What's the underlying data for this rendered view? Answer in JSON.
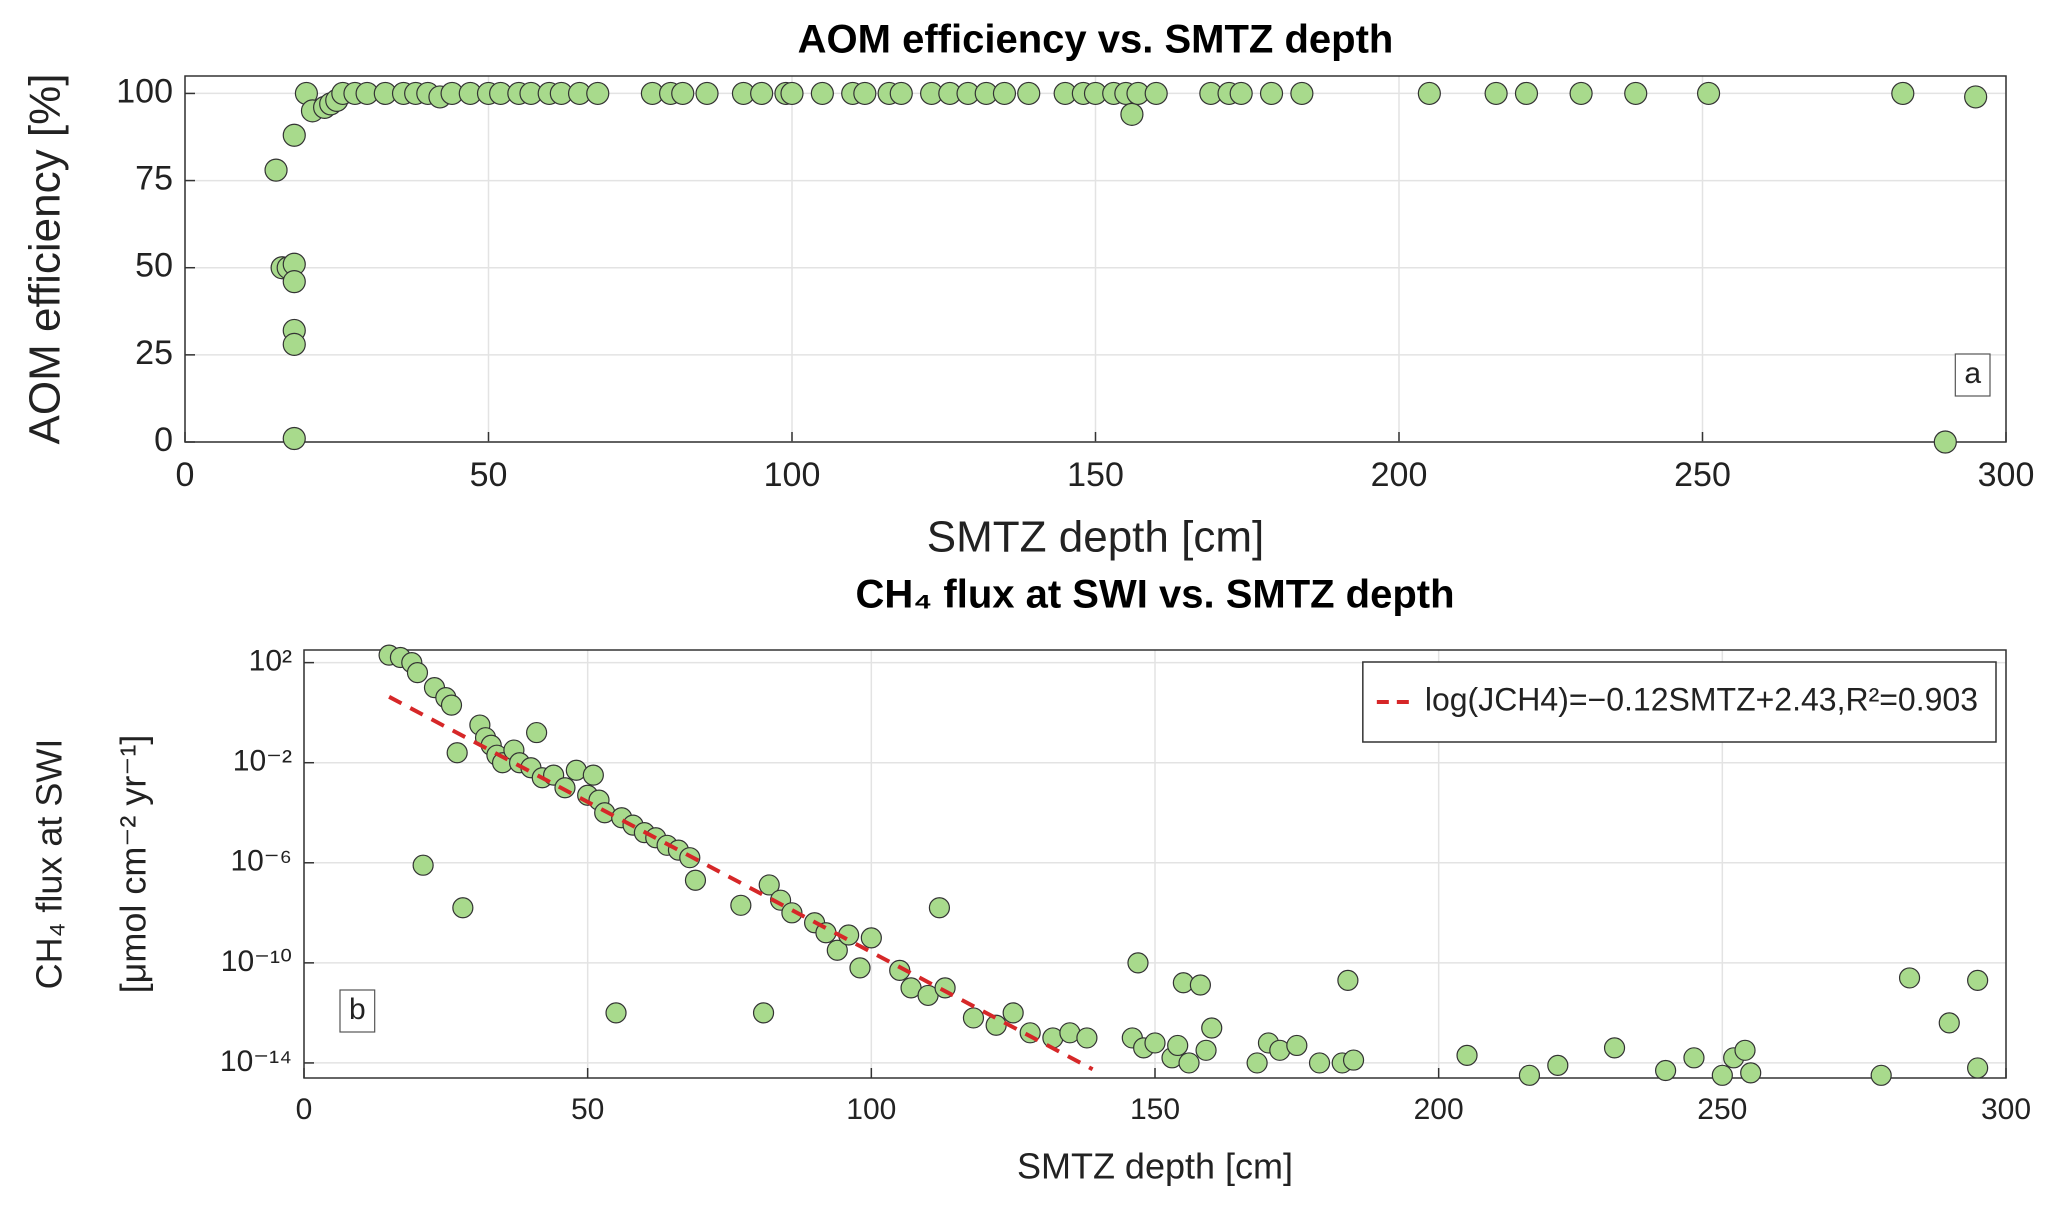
{
  "chart_data": [
    {
      "type": "scatter",
      "title": "AOM efficiency vs. SMTZ depth",
      "xlabel": "SMTZ depth [cm]",
      "ylabel": "AOM efficiency  [%]",
      "xlim": [
        0,
        300
      ],
      "xticks": [
        0,
        50,
        100,
        150,
        200,
        250,
        300
      ],
      "ylim": [
        0,
        105
      ],
      "yticks": [
        0,
        25,
        50,
        75,
        100
      ],
      "grid": true,
      "annotation": "a",
      "annotation_corner": "lower right",
      "series": [
        {
          "color": "#a8da8c",
          "x": [
            15,
            16,
            17,
            18,
            18,
            18,
            18,
            18,
            18,
            20,
            21,
            23,
            24,
            25,
            26,
            28,
            30,
            33,
            36,
            38,
            40,
            42,
            44,
            47,
            50,
            52,
            55,
            57,
            60,
            62,
            65,
            68,
            77,
            80,
            82,
            86,
            92,
            95,
            99,
            100,
            105,
            110,
            112,
            116,
            118,
            123,
            126,
            129,
            132,
            135,
            139,
            145,
            148,
            150,
            153,
            155,
            156,
            157,
            160,
            169,
            172,
            174,
            179,
            184,
            205,
            216,
            221,
            230,
            239,
            251,
            283,
            290,
            295
          ],
          "values": [
            78,
            50,
            50,
            51,
            46,
            32,
            28,
            1,
            88,
            100,
            95,
            96,
            97,
            98,
            100,
            100,
            100,
            100,
            100,
            100,
            100,
            99,
            100,
            100,
            100,
            100,
            100,
            100,
            100,
            100,
            100,
            100,
            100,
            100,
            100,
            100,
            100,
            100,
            100,
            100,
            100,
            100,
            100,
            100,
            100,
            100,
            100,
            100,
            100,
            100,
            100,
            100,
            100,
            100,
            100,
            100,
            94,
            100,
            100,
            100,
            100,
            100,
            100,
            100,
            100,
            100,
            100,
            100,
            100,
            100,
            100,
            0,
            99
          ]
        }
      ]
    },
    {
      "type": "scatter",
      "title": "CH₄ flux at SWI vs. SMTZ depth",
      "xlabel": "SMTZ depth [cm]",
      "ylabel": [
        "CH₄ flux at SWI",
        "[μmol cm⁻² yr⁻¹]"
      ],
      "xlim": [
        0,
        300
      ],
      "xticks": [
        0,
        50,
        100,
        150,
        200,
        250,
        300
      ],
      "yscale": "log",
      "ylim": [
        2.5e-15,
        320
      ],
      "yticks": [
        {
          "value": 1e-14,
          "label": "10⁻¹⁴"
        },
        {
          "value": 1e-10,
          "label": "10⁻¹⁰"
        },
        {
          "value": 1e-06,
          "label": "10⁻⁶"
        },
        {
          "value": 0.01,
          "label": "10⁻²"
        },
        {
          "value": 100,
          "label": "10²"
        }
      ],
      "grid": true,
      "legend": "upper right",
      "annotation": "b",
      "annotation_corner": "lower left",
      "series": [
        {
          "color": "#a8da8c",
          "x": [
            15,
            17,
            19,
            20,
            21,
            23,
            25,
            26,
            27,
            28,
            31,
            32,
            33,
            34,
            35,
            37,
            38,
            40,
            41,
            42,
            44,
            46,
            48,
            50,
            51,
            52,
            53,
            55,
            56,
            58,
            60,
            62,
            64,
            66,
            68,
            69,
            77,
            81,
            82,
            84,
            86,
            90,
            92,
            94,
            96,
            98,
            100,
            105,
            107,
            110,
            112,
            113,
            118,
            122,
            125,
            128,
            132,
            135,
            138,
            146,
            147,
            148,
            150,
            153,
            154,
            155,
            156,
            158,
            159,
            160,
            168,
            170,
            172,
            175,
            179,
            183,
            184,
            185,
            205,
            216,
            221,
            231,
            240,
            245,
            250,
            252,
            254,
            255,
            278,
            283,
            290,
            295,
            295
          ],
          "values": [
            200,
            160,
            100,
            40,
            8e-07,
            10,
            4,
            2,
            0.025,
            1.6e-08,
            0.32,
            0.1,
            0.05,
            0.02,
            0.01,
            0.032,
            0.01,
            0.0063,
            0.16,
            0.0025,
            0.0032,
            0.001,
            0.005,
            0.0005,
            0.0032,
            0.00032,
            0.0001,
            1e-12,
            6.3e-05,
            3.2e-05,
            1.6e-05,
            1e-05,
            5e-06,
            3.2e-06,
            1.6e-06,
            2e-07,
            2e-08,
            1e-12,
            1.3e-07,
            3.2e-08,
            1e-08,
            4e-09,
            1.6e-09,
            3.2e-10,
            1.3e-09,
            6.3e-11,
            1e-09,
            5e-11,
            1e-11,
            5e-12,
            1.6e-08,
            1e-11,
            6.3e-13,
            3.2e-13,
            1e-12,
            1.6e-13,
            1e-13,
            1.6e-13,
            1e-13,
            1e-13,
            1e-10,
            4e-14,
            6.3e-14,
            1.6e-14,
            5e-14,
            1.6e-11,
            1e-14,
            1.3e-11,
            3.2e-14,
            2.5e-13,
            1e-14,
            6.3e-14,
            3.2e-14,
            5e-14,
            1e-14,
            1e-14,
            2e-11,
            1.3e-14,
            2e-14,
            3.2e-15,
            8e-15,
            4e-14,
            5e-15,
            1.6e-14,
            3.2e-15,
            1.6e-14,
            3.2e-14,
            4e-15,
            3.2e-15,
            2.5e-11,
            4e-13,
            6.3e-15,
            2e-11
          ]
        },
        {
          "name": "log(JCH4)=−0.12SMTZ+2.43,R²=0.903",
          "color": "#d62728",
          "line_style": "dashed",
          "x": [
            15,
            139
          ],
          "values": [
            4.3,
            5.6e-15
          ]
        }
      ]
    }
  ]
}
